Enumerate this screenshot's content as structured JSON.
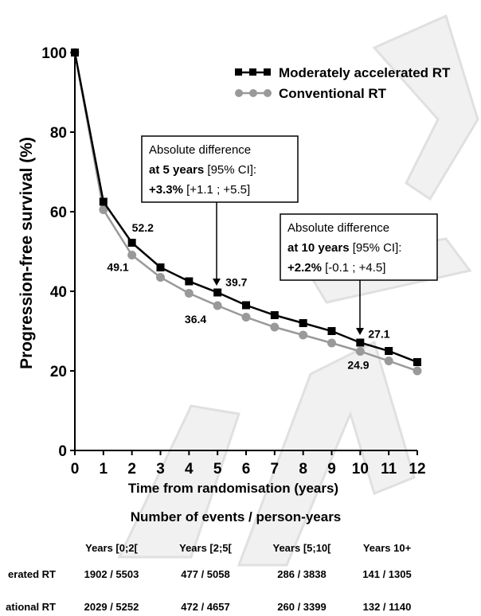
{
  "chart_data": {
    "type": "line",
    "title": "",
    "xlabel": "Time from randomisation  (years)",
    "ylabel": "Progression-free  survival  (%)",
    "xlim": [
      0,
      12
    ],
    "ylim": [
      0,
      100
    ],
    "x_ticks": [
      "0",
      "1",
      "2",
      "3",
      "4",
      "5",
      "6",
      "7",
      "8",
      "9",
      "10",
      "11",
      "12"
    ],
    "y_ticks": [
      "0",
      "20",
      "40",
      "60",
      "80",
      "100"
    ],
    "grid": false,
    "legend_position": "top-right",
    "x": [
      0,
      1,
      2,
      3,
      4,
      5,
      6,
      7,
      8,
      9,
      10,
      11,
      12
    ],
    "series": [
      {
        "name": "Moderately accelerated RT",
        "color": "#000000",
        "marker": "square",
        "values": [
          100,
          62.5,
          52.2,
          46.0,
          42.5,
          39.7,
          36.5,
          34.0,
          32.0,
          30.0,
          27.1,
          25.0,
          22.2
        ]
      },
      {
        "name": "Conventional RT",
        "color": "#999999",
        "marker": "circle",
        "values": [
          100,
          60.5,
          49.1,
          43.5,
          39.5,
          36.4,
          33.5,
          31.0,
          29.0,
          27.0,
          24.9,
          22.5,
          20.0
        ]
      }
    ],
    "data_labels": [
      {
        "series": 0,
        "x": 2,
        "text": "52.2"
      },
      {
        "series": 1,
        "x": 2,
        "text": "49.1"
      },
      {
        "series": 0,
        "x": 5,
        "text": "39.7"
      },
      {
        "series": 1,
        "x": 5,
        "text": "36.4"
      },
      {
        "series": 0,
        "x": 10,
        "text": "27.1"
      },
      {
        "series": 1,
        "x": 10,
        "text": "24.9"
      }
    ],
    "annotations": [
      {
        "at_x": 5,
        "line1": "Absolute difference",
        "line2_bold": "at 5 years",
        "line2_rest": " [95% CI]:",
        "line3_bold": "+3.3%",
        "line3_rest": " [+1.1 ; +5.5]"
      },
      {
        "at_x": 10,
        "line1": "Absolute difference",
        "line2_bold": "at 10 years",
        "line2_rest": " [95% CI]:",
        "line3_bold": "+2.2%",
        "line3_rest": " [-0.1 ; +4.5]"
      }
    ]
  },
  "risk_table": {
    "title": "Number of events / person-years",
    "columns": [
      "Years [0;2[",
      "Years [2;5[",
      "Years [5;10[",
      "Years 10+"
    ],
    "rows": [
      {
        "label": "erated RT",
        "cells": [
          "1902 / 5503",
          "477 / 5058",
          "286 / 3838",
          "141 / 1305"
        ]
      },
      {
        "label": "ational RT",
        "cells": [
          "2029 / 5252",
          "472 / 4657",
          "260 / 3399",
          "132 / 1140"
        ]
      }
    ]
  }
}
